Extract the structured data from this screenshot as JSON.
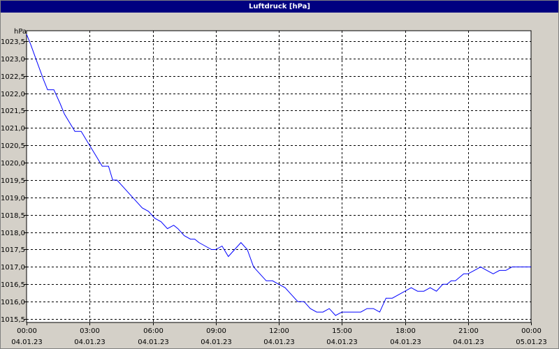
{
  "window": {
    "title": "Luftdruck [hPa]"
  },
  "chart_data": {
    "type": "line",
    "title": "Luftdruck [hPa]",
    "unit_label": "hPa",
    "xlabel": "",
    "ylabel": "",
    "grid": true,
    "xlim": [
      0,
      24
    ],
    "ylim": [
      1015.4,
      1023.8
    ],
    "y_ticks": [
      1015.5,
      1016.0,
      1016.5,
      1017.0,
      1017.5,
      1018.0,
      1018.5,
      1019.0,
      1019.5,
      1020.0,
      1020.5,
      1021.0,
      1021.5,
      1022.0,
      1022.5,
      1023.0,
      1023.5
    ],
    "y_tick_labels": [
      "1015,5",
      "1016,0",
      "1016,5",
      "1017,0",
      "1017,5",
      "1018,0",
      "1018,5",
      "1019,0",
      "1019,5",
      "1020,0",
      "1020,5",
      "1021,0",
      "1021,5",
      "1022,0",
      "1022,5",
      "1023,0",
      "1023,5"
    ],
    "x_ticks": [
      {
        "value": 0,
        "time": "00:00",
        "date": "04.01.23"
      },
      {
        "value": 3,
        "time": "03:00",
        "date": "04.01.23"
      },
      {
        "value": 6,
        "time": "06:00",
        "date": "04.01.23"
      },
      {
        "value": 9,
        "time": "09:00",
        "date": "04.01.23"
      },
      {
        "value": 12,
        "time": "12:00",
        "date": "04.01.23"
      },
      {
        "value": 15,
        "time": "15:00",
        "date": "04.01.23"
      },
      {
        "value": 18,
        "time": "18:00",
        "date": "04.01.23"
      },
      {
        "value": 21,
        "time": "21:00",
        "date": "04.01.23"
      },
      {
        "value": 24,
        "time": "00:00",
        "date": "05.01.23"
      }
    ],
    "line_color": "#0000ff",
    "series": [
      {
        "x": [
          0,
          0.2,
          0.5,
          0.8,
          1.0,
          1.3,
          1.6,
          1.8,
          2.0,
          2.3,
          2.6,
          2.9,
          3.1,
          3.3,
          3.6,
          3.9,
          4.1,
          4.3,
          4.6,
          4.9,
          5.2,
          5.5,
          5.8,
          6.1,
          6.4,
          6.7,
          7.0,
          7.2,
          7.5,
          7.8,
          8.0,
          8.2,
          8.5,
          8.8,
          9.0,
          9.3,
          9.6,
          9.9,
          10.2,
          10.5,
          10.8,
          11.1,
          11.4,
          11.7,
          12.0,
          12.3,
          12.6,
          12.9,
          13.2,
          13.5,
          13.8,
          14.1,
          14.4,
          14.7,
          15.0,
          15.3,
          15.6,
          15.9,
          16.2,
          16.5,
          16.8,
          17.1,
          17.4,
          17.7,
          18.0,
          18.3,
          18.6,
          18.9,
          19.2,
          19.5,
          19.8,
          20.0,
          20.2,
          20.4,
          20.6,
          20.8,
          21.0,
          21.3,
          21.6,
          21.9,
          22.2,
          22.5,
          22.8,
          23.1,
          23.4,
          23.7,
          24.0
        ],
        "y": [
          1023.7,
          1023.4,
          1022.9,
          1022.4,
          1022.1,
          1022.1,
          1021.7,
          1021.4,
          1021.2,
          1020.9,
          1020.9,
          1020.6,
          1020.4,
          1020.2,
          1019.9,
          1019.9,
          1019.5,
          1019.5,
          1019.3,
          1019.1,
          1018.9,
          1018.7,
          1018.6,
          1018.4,
          1018.3,
          1018.1,
          1018.2,
          1018.1,
          1017.9,
          1017.8,
          1017.8,
          1017.7,
          1017.6,
          1017.5,
          1017.5,
          1017.6,
          1017.3,
          1017.5,
          1017.7,
          1017.5,
          1017.0,
          1016.8,
          1016.6,
          1016.6,
          1016.5,
          1016.4,
          1016.2,
          1016.0,
          1016.0,
          1015.8,
          1015.7,
          1015.7,
          1015.8,
          1015.6,
          1015.7,
          1015.7,
          1015.7,
          1015.7,
          1015.8,
          1015.8,
          1015.7,
          1016.1,
          1016.1,
          1016.2,
          1016.3,
          1016.4,
          1016.3,
          1016.3,
          1016.4,
          1016.3,
          1016.5,
          1016.5,
          1016.6,
          1016.6,
          1016.7,
          1016.8,
          1016.8,
          1016.9,
          1017.0,
          1016.9,
          1016.8,
          1016.9,
          1016.9,
          1017.0,
          1017.0,
          1017.0,
          1017.0
        ]
      }
    ]
  }
}
